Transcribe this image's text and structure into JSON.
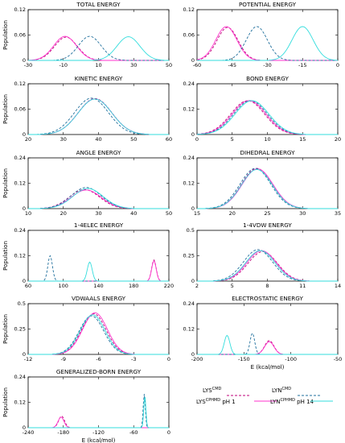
{
  "series_styles": {
    "LYS_CMD": {
      "color": "#c0007a",
      "dash": "3,2"
    },
    "LYS_CPHMD": {
      "color": "#ff33cc",
      "dash": ""
    },
    "LYN_CMD": {
      "color": "#1f6f9c",
      "dash": "3,2"
    },
    "LYN_CPHMD": {
      "color": "#33dddd",
      "dash": ""
    }
  },
  "legend": {
    "lys_cmd": {
      "base": "LYS",
      "sup": "CMD",
      "suffix": ""
    },
    "lyn_cmd": {
      "base": "LYN",
      "sup": "CMD",
      "suffix": ""
    },
    "lys_cphmd": {
      "base": "LYS",
      "sup": "CPHMD",
      "suffix": " pH 1"
    },
    "lyn_cphmd": {
      "base": "LYN",
      "sup": "CPHMD",
      "suffix": " pH 14"
    }
  },
  "chart_data": [
    {
      "type": "line",
      "title": "TOTAL ENERGY",
      "xlim": [
        -30,
        50
      ],
      "ylim": [
        0,
        0.12
      ],
      "xticks": [
        "-30",
        "-10",
        "10",
        "30",
        "50"
      ],
      "yticks": [
        "0",
        "0.06",
        "0.12"
      ],
      "ylabel": "Population",
      "xlabel": "",
      "series": [
        {
          "style": "LYS_CMD",
          "peaks": [
            [
              -8.5,
              0.055,
              6.5
            ]
          ]
        },
        {
          "style": "LYS_CPHMD",
          "peaks": [
            [
              -9,
              0.057,
              6.5
            ]
          ]
        },
        {
          "style": "LYN_CMD",
          "peaks": [
            [
              5,
              0.057,
              6.5
            ]
          ]
        },
        {
          "style": "LYN_CPHMD",
          "peaks": [
            [
              27,
              0.056,
              6.5
            ]
          ]
        }
      ]
    },
    {
      "type": "line",
      "title": "POTENTIAL ENERGY",
      "xlim": [
        -60,
        0
      ],
      "ylim": [
        0,
        0.12
      ],
      "xticks": [
        "-60",
        "-45",
        "-30",
        "-15",
        "0"
      ],
      "yticks": [
        "0",
        "0.06",
        "0.12"
      ],
      "ylabel": "",
      "xlabel": "",
      "series": [
        {
          "style": "LYS_CMD",
          "peaks": [
            [
              -47,
              0.078,
              4.5
            ]
          ]
        },
        {
          "style": "LYS_CPHMD",
          "peaks": [
            [
              -47.5,
              0.08,
              4.5
            ]
          ]
        },
        {
          "style": "LYN_CMD",
          "peaks": [
            [
              -34.5,
              0.08,
              4.5
            ]
          ]
        },
        {
          "style": "LYN_CPHMD",
          "peaks": [
            [
              -15,
              0.08,
              4.5
            ]
          ]
        }
      ]
    },
    {
      "type": "line",
      "title": "KINETIC ENERGY",
      "xlim": [
        20,
        60
      ],
      "ylim": [
        0,
        0.12
      ],
      "xticks": [
        "20",
        "30",
        "40",
        "50",
        "60"
      ],
      "yticks": [
        "0",
        "0.06",
        "0.12"
      ],
      "ylabel": "Population",
      "xlabel": "",
      "series": [
        {
          "style": "LYS_CMD",
          "peaks": [
            [
              39,
              0.085,
              4.8
            ]
          ]
        },
        {
          "style": "LYS_CPHMD",
          "peaks": [
            [
              39,
              0.084,
              4.8
            ]
          ]
        },
        {
          "style": "LYN_CMD",
          "peaks": [
            [
              38,
              0.086,
              4.8
            ]
          ]
        },
        {
          "style": "LYN_CPHMD",
          "peaks": [
            [
              39,
              0.084,
              4.8
            ]
          ]
        }
      ]
    },
    {
      "type": "line",
      "title": "BOND ENERGY",
      "xlim": [
        0,
        20
      ],
      "ylim": [
        0,
        0.24
      ],
      "xticks": [
        "0",
        "5",
        "10",
        "15",
        "20"
      ],
      "yticks": [
        "0",
        "0.12",
        "0.24"
      ],
      "ylabel": "",
      "xlabel": "",
      "series": [
        {
          "style": "LYS_CMD",
          "peaks": [
            [
              7.2,
              0.16,
              2.4
            ]
          ]
        },
        {
          "style": "LYS_CPHMD",
          "peaks": [
            [
              7.4,
              0.16,
              2.4
            ]
          ]
        },
        {
          "style": "LYN_CMD",
          "peaks": [
            [
              7.6,
              0.16,
              2.4
            ]
          ]
        },
        {
          "style": "LYN_CPHMD",
          "peaks": [
            [
              7.8,
              0.16,
              2.4
            ]
          ]
        }
      ]
    },
    {
      "type": "line",
      "title": "ANGLE ENERGY",
      "xlim": [
        10,
        50
      ],
      "ylim": [
        0,
        0.24
      ],
      "xticks": [
        "10",
        "20",
        "30",
        "40",
        "50"
      ],
      "yticks": [
        "0",
        "0.12",
        "0.24"
      ],
      "ylabel": "Population",
      "xlabel": "",
      "series": [
        {
          "style": "LYS_CMD",
          "peaks": [
            [
              26,
              0.09,
              4.3
            ]
          ]
        },
        {
          "style": "LYS_CPHMD",
          "peaks": [
            [
              26.5,
              0.088,
              4.3
            ]
          ]
        },
        {
          "style": "LYN_CMD",
          "peaks": [
            [
              26.5,
              0.1,
              4.3
            ]
          ]
        },
        {
          "style": "LYN_CPHMD",
          "peaks": [
            [
              27,
              0.095,
              4.3
            ]
          ]
        }
      ]
    },
    {
      "type": "line",
      "title": "DIHEDRAL ENERGY",
      "xlim": [
        15,
        35
      ],
      "ylim": [
        0,
        0.24
      ],
      "xticks": [
        "15",
        "20",
        "25",
        "30",
        "35"
      ],
      "yticks": [
        "0",
        "0.12",
        "0.24"
      ],
      "ylabel": "",
      "xlabel": "",
      "series": [
        {
          "style": "LYS_CMD",
          "peaks": [
            [
              23.5,
              0.19,
              2.2
            ]
          ]
        },
        {
          "style": "LYS_CPHMD",
          "peaks": [
            [
              23.6,
              0.188,
              2.2
            ]
          ]
        },
        {
          "style": "LYN_CMD",
          "peaks": [
            [
              23.3,
              0.19,
              2.2
            ]
          ]
        },
        {
          "style": "LYN_CPHMD",
          "peaks": [
            [
              23.5,
              0.185,
              2.2
            ]
          ]
        }
      ]
    },
    {
      "type": "line",
      "title": "1-4ELEC ENERGY",
      "xlim": [
        60,
        220
      ],
      "ylim": [
        0,
        0.24
      ],
      "xticks": [
        "60",
        "100",
        "140",
        "180",
        "220"
      ],
      "yticks": [
        "0",
        "0.12",
        "0.24"
      ],
      "ylabel": "Population",
      "xlabel": "",
      "series": [
        {
          "style": "LYS_CMD",
          "peaks": [
            [
              203,
              0.1,
              2.6
            ]
          ]
        },
        {
          "style": "LYS_CPHMD",
          "peaks": [
            [
              203,
              0.095,
              2.6
            ]
          ]
        },
        {
          "style": "LYN_CMD",
          "peaks": [
            [
              85,
              0.12,
              2.6
            ]
          ]
        },
        {
          "style": "LYN_CPHMD",
          "peaks": [
            [
              130,
              0.09,
              2.8
            ]
          ]
        }
      ]
    },
    {
      "type": "line",
      "title": "1-4VDW ENERGY",
      "xlim": [
        2,
        14
      ],
      "ylim": [
        0,
        0.5
      ],
      "xticks": [
        "2",
        "5",
        "8",
        "11",
        "14"
      ],
      "yticks": [
        "0",
        "0.25",
        "0.5"
      ],
      "ylabel": "",
      "xlabel": "",
      "series": [
        {
          "style": "LYS_CMD",
          "peaks": [
            [
              7.6,
              0.29,
              1.25
            ]
          ]
        },
        {
          "style": "LYS_CPHMD",
          "peaks": [
            [
              7.5,
              0.3,
              1.25
            ]
          ]
        },
        {
          "style": "LYN_CMD",
          "peaks": [
            [
              7.2,
              0.31,
              1.25
            ]
          ]
        },
        {
          "style": "LYN_CPHMD",
          "peaks": [
            [
              7.4,
              0.3,
              1.25
            ]
          ]
        }
      ]
    },
    {
      "type": "line",
      "title": "VDWAALS ENERGY",
      "xlim": [
        -12,
        0
      ],
      "ylim": [
        0,
        0.5
      ],
      "xticks": [
        "-12",
        "-9",
        "-6",
        "-3",
        "0"
      ],
      "yticks": [
        "0",
        "0.25",
        "0.5"
      ],
      "ylabel": "Population",
      "xlabel": "",
      "series": [
        {
          "style": "LYS_CMD",
          "peaks": [
            [
              -6.4,
              0.4,
              1.05
            ]
          ]
        },
        {
          "style": "LYS_CPHMD",
          "peaks": [
            [
              -6.3,
              0.41,
              1.05
            ]
          ]
        },
        {
          "style": "LYN_CMD",
          "peaks": [
            [
              -6.6,
              0.38,
              1.05
            ]
          ]
        },
        {
          "style": "LYN_CPHMD",
          "peaks": [
            [
              -6.5,
              0.39,
              1.05
            ]
          ]
        }
      ]
    },
    {
      "type": "line",
      "title": "ELECTROSTATIC ENERGY",
      "xlim": [
        -200,
        -50
      ],
      "ylim": [
        0,
        0.24
      ],
      "xticks": [
        "-200",
        "-150",
        "-100",
        "-50"
      ],
      "yticks": [
        "0",
        "0.12",
        "0.24"
      ],
      "ylabel": "",
      "xlabel": "E (kcal/mol)",
      "series": [
        {
          "style": "LYS_CMD",
          "peaks": [
            [
              -123,
              0.065,
              5
            ]
          ]
        },
        {
          "style": "LYS_CPHMD",
          "peaks": [
            [
              -123,
              0.06,
              5
            ]
          ]
        },
        {
          "style": "LYN_CMD",
          "peaks": [
            [
              -141,
              0.1,
              2.5
            ]
          ]
        },
        {
          "style": "LYN_CPHMD",
          "peaks": [
            [
              -168,
              0.09,
              3
            ]
          ]
        }
      ]
    },
    {
      "type": "line",
      "title": "GENERALIZED-BORN ENERGY",
      "xlim": [
        -240,
        0
      ],
      "ylim": [
        0,
        0.24
      ],
      "xticks": [
        "-240",
        "-180",
        "-120",
        "-60",
        "0"
      ],
      "yticks": [
        "0",
        "0.12",
        "0.24"
      ],
      "ylabel": "Population",
      "xlabel": "E (kcal/mol)",
      "series": [
        {
          "style": "LYS_CMD",
          "peaks": [
            [
              -183,
              0.055,
              5
            ]
          ]
        },
        {
          "style": "LYS_CPHMD",
          "peaks": [
            [
              -184,
              0.05,
              5
            ]
          ]
        },
        {
          "style": "LYN_CMD",
          "peaks": [
            [
              -42,
              0.16,
              1.8
            ]
          ]
        },
        {
          "style": "LYN_CPHMD",
          "peaks": [
            [
              -41,
              0.15,
              1.8
            ]
          ]
        }
      ]
    }
  ]
}
